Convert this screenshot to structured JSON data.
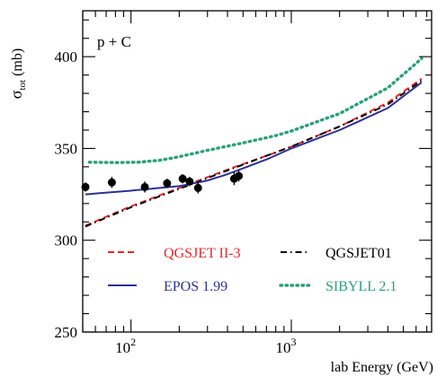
{
  "chart_data": {
    "type": "line",
    "annotation": "p + C",
    "xlabel": "lab Energy (GeV)",
    "ylabel_main": "σ",
    "ylabel_sub": "tot",
    "ylabel_unit": "(mb)",
    "x_scale": "log",
    "xlim": [
      50,
      7500
    ],
    "ylim": [
      250,
      425
    ],
    "y_ticks": [
      250,
      300,
      350,
      400
    ],
    "y_tick_labels": [
      "250",
      "300",
      "350",
      "400"
    ],
    "x_major_ticks": [
      100,
      1000
    ],
    "x_tick_base": "10",
    "x_tick_exponents": [
      "2",
      "3"
    ],
    "grid": false,
    "legend_position": "lower-middle, inside plot",
    "series": [
      {
        "name": "QGSJET II-3",
        "style": "dashed",
        "color": "#e8272a",
        "x": [
          52,
          100,
          200,
          400,
          700,
          1000,
          2000,
          4000,
          6500
        ],
        "y": [
          308,
          318.5,
          328.5,
          338.5,
          346,
          351,
          362,
          375,
          388
        ]
      },
      {
        "name": "QGSJET01",
        "style": "dashdot",
        "color": "#000000",
        "x": [
          52,
          100,
          200,
          400,
          700,
          1000,
          2000,
          4000,
          6500
        ],
        "y": [
          307.5,
          318,
          328,
          338,
          346,
          351,
          362,
          374,
          387
        ]
      },
      {
        "name": "EPOS 1.99",
        "style": "solid",
        "color": "#2e3192",
        "x": [
          52,
          100,
          200,
          300,
          400,
          700,
          1000,
          2000,
          4000,
          6500
        ],
        "y": [
          325,
          327,
          329.5,
          332.5,
          336,
          344,
          350,
          360,
          372,
          386
        ]
      },
      {
        "name": "SIBYLL 2.1",
        "style": "dotted",
        "color": "#2aa07a",
        "x": [
          55,
          80,
          110,
          150,
          200,
          300,
          500,
          800,
          1000,
          2000,
          4000,
          6500
        ],
        "y": [
          342.5,
          342.3,
          342.5,
          343.5,
          345.5,
          349,
          353,
          357,
          359.5,
          369,
          383,
          399
        ]
      }
    ],
    "data_points": {
      "x": [
        52,
        76,
        122,
        168,
        210,
        232,
        262,
        440,
        470
      ],
      "y": [
        329,
        331.5,
        329,
        331,
        333.5,
        332,
        328.5,
        333.5,
        335
      ],
      "yerr": [
        2.5,
        3,
        3,
        2.5,
        2.5,
        2.5,
        3,
        3.5,
        3
      ]
    }
  }
}
